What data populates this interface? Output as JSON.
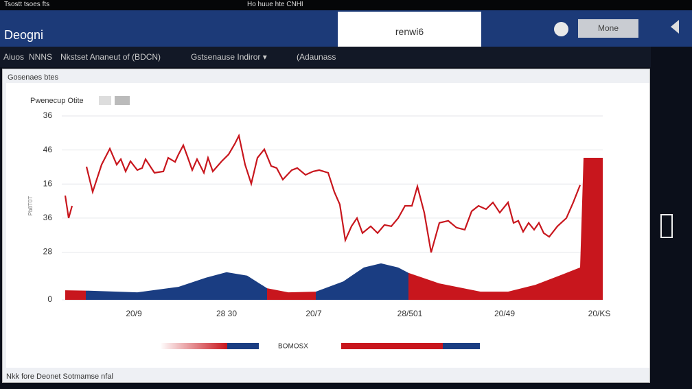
{
  "status_bar": {
    "left": "Tsostt tsoes fts",
    "center": "Ho huue hte CNHI"
  },
  "header": {
    "title": "Deogni",
    "tab": "renwi6",
    "button": "Mone"
  },
  "subheader": {
    "items": [
      "Aiuos",
      "NNNS",
      "Nkstset Ananeut of (BDCN)",
      "Gstsenause Indiror ▾",
      "(Adaunass"
    ]
  },
  "panel": {
    "title": "Gosenaes btes",
    "footer": "Nkk fore Deonet Sotmamse nfal",
    "legend_text": "BOMOSX"
  },
  "chart_data": {
    "type": "line",
    "title": "Pwenecup Otite",
    "y_label": "Pb8T0T",
    "grid": true,
    "xlim": [
      0,
      783
    ],
    "ylim": [
      0,
      5.4
    ],
    "xticks": [
      {
        "value": 100,
        "label": "20/9"
      },
      {
        "value": 235,
        "label": "28 30"
      },
      {
        "value": 362,
        "label": "20/7"
      },
      {
        "value": 502,
        "label": "28/501"
      },
      {
        "value": 640,
        "label": "20/49"
      },
      {
        "value": 778,
        "label": "20/KS"
      }
    ],
    "yticks": [
      0,
      {
        "value": 1.4,
        "label": "28"
      },
      {
        "value": 2.4,
        "label": "36"
      },
      {
        "value": 3.4,
        "label": "16"
      },
      {
        "value": 4.4,
        "label": "46"
      },
      {
        "value": 5.4,
        "label": "36"
      }
    ],
    "series": [
      {
        "color": "#c8161d",
        "x": [
          0,
          5,
          10,
          27,
          31,
          40,
          53,
          65,
          75,
          81,
          88,
          95,
          105,
          112,
          117,
          130,
          143,
          150,
          160,
          165,
          172,
          178,
          185,
          192,
          202,
          208,
          215,
          228,
          238,
          247,
          253,
          262,
          271,
          280,
          290,
          300,
          308,
          317,
          330,
          338,
          350,
          361,
          370,
          383,
          392,
          400,
          408,
          417,
          425,
          433,
          445,
          455,
          465,
          475,
          485,
          495,
          505,
          513,
          523,
          533,
          545,
          558,
          570,
          582,
          592,
          602,
          613,
          623,
          633,
          645,
          653,
          660,
          667,
          675,
          683,
          690,
          697,
          705,
          717,
          730,
          740,
          750
        ],
        "values": [
          3.06,
          2.4,
          2.76,
          null,
          3.91,
          3.17,
          3.97,
          4.44,
          3.97,
          4.13,
          3.77,
          4.07,
          3.81,
          3.87,
          4.13,
          3.73,
          3.77,
          4.17,
          4.05,
          4.27,
          4.54,
          4.21,
          3.81,
          4.13,
          3.73,
          4.17,
          3.77,
          4.07,
          4.27,
          4.58,
          4.82,
          3.97,
          3.41,
          4.17,
          4.42,
          3.93,
          3.87,
          3.53,
          3.81,
          3.87,
          3.67,
          3.77,
          3.81,
          3.73,
          3.17,
          2.8,
          1.75,
          2.16,
          2.4,
          1.96,
          2.16,
          1.96,
          2.2,
          2.16,
          2.4,
          2.76,
          2.76,
          3.33,
          2.56,
          1.39,
          2.26,
          2.32,
          2.12,
          2.06,
          2.6,
          2.76,
          2.66,
          2.86,
          2.56,
          2.86,
          2.26,
          2.32,
          2.0,
          2.26,
          2.06,
          2.26,
          1.96,
          1.85,
          2.16,
          2.4,
          2.86,
          3.37
        ]
      },
      {
        "type": "area",
        "color": "#c8161d",
        "x": [
          0,
          30
        ],
        "values": [
          0.28,
          0.27
        ]
      },
      {
        "type": "area",
        "color": "#1a3d82",
        "x": [
          30,
          105,
          165,
          205,
          235,
          265,
          294
        ],
        "values": [
          0.27,
          0.22,
          0.38,
          0.65,
          0.81,
          0.71,
          0.34
        ]
      },
      {
        "type": "area",
        "color": "#c8161d",
        "x": [
          294,
          325,
          365
        ],
        "values": [
          0.34,
          0.22,
          0.24
        ]
      },
      {
        "type": "area",
        "color": "#1a3d82",
        "x": [
          365,
          405,
          435,
          460,
          485,
          500
        ],
        "values": [
          0.24,
          0.54,
          0.95,
          1.07,
          0.95,
          0.79
        ]
      },
      {
        "type": "area",
        "color": "#c8161d",
        "x": [
          500,
          545,
          605,
          645,
          685,
          725,
          750,
          755,
          783
        ],
        "values": [
          0.79,
          0.48,
          0.24,
          0.24,
          0.44,
          0.75,
          0.95,
          4.17,
          4.17
        ]
      }
    ]
  }
}
